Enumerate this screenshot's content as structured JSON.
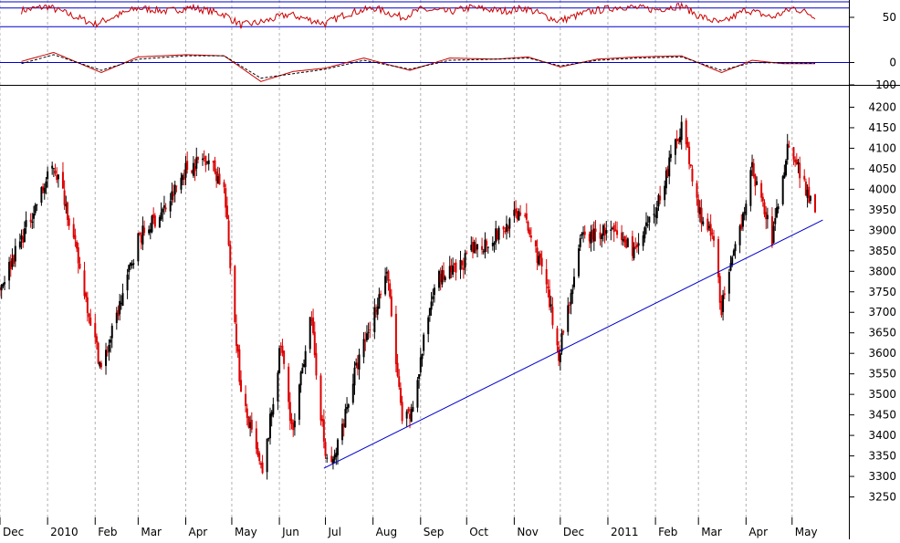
{
  "chart_data": [
    {
      "panel": "oscillator-upper",
      "type": "line",
      "ylim": [
        0,
        100
      ],
      "y_ticks": [
        50
      ],
      "guide_lines": [
        80,
        20,
        100
      ],
      "series": [
        {
          "color": "#cc0000",
          "x": [
            "2009-12-15",
            "2010-01-01",
            "2010-01-12",
            "2010-02-01",
            "2010-02-15",
            "2010-03-01",
            "2010-03-20",
            "2010-04-05",
            "2010-04-26",
            "2010-05-07",
            "2010-05-21",
            "2010-06-07",
            "2010-06-21",
            "2010-07-01",
            "2010-07-15",
            "2010-08-02",
            "2010-08-20",
            "2010-09-01",
            "2010-09-20",
            "2010-10-04",
            "2010-10-25",
            "2010-11-08",
            "2010-11-30",
            "2010-12-20",
            "2011-01-10",
            "2011-02-01",
            "2011-02-18",
            "2011-03-01",
            "2011-03-16",
            "2011-04-01",
            "2011-04-18",
            "2011-05-02",
            "2011-05-16"
          ],
          "values": [
            72,
            85,
            65,
            28,
            55,
            80,
            70,
            82,
            60,
            25,
            35,
            60,
            42,
            30,
            62,
            80,
            50,
            75,
            68,
            82,
            70,
            80,
            38,
            68,
            85,
            75,
            88,
            55,
            30,
            75,
            50,
            80,
            55
          ]
        }
      ]
    },
    {
      "panel": "oscillator-lower",
      "type": "line",
      "ylim": [
        -100,
        100
      ],
      "y_ticks": [
        0,
        -100
      ],
      "guide_lines": [
        0
      ],
      "series": [
        {
          "color": "#cc0000",
          "x": [
            "2009-12-15",
            "2010-01-05",
            "2010-02-05",
            "2010-03-01",
            "2010-04-01",
            "2010-04-26",
            "2010-05-20",
            "2010-06-10",
            "2010-07-01",
            "2010-07-26",
            "2010-08-25",
            "2010-09-20",
            "2010-10-20",
            "2010-11-10",
            "2010-12-01",
            "2010-12-25",
            "2011-01-20",
            "2011-02-18",
            "2011-03-16",
            "2011-04-05",
            "2011-04-25",
            "2011-05-16"
          ],
          "values": [
            5,
            45,
            -45,
            25,
            35,
            30,
            -85,
            -40,
            -25,
            20,
            -35,
            20,
            15,
            25,
            -20,
            15,
            25,
            30,
            -45,
            10,
            -5,
            -5
          ]
        },
        {
          "color": "#000000",
          "dashed": true,
          "x": [
            "2009-12-15",
            "2010-01-05",
            "2010-02-05",
            "2010-03-01",
            "2010-04-01",
            "2010-04-26",
            "2010-05-20",
            "2010-06-10",
            "2010-07-01",
            "2010-07-26",
            "2010-08-25",
            "2010-09-20",
            "2010-10-20",
            "2010-11-10",
            "2010-12-01",
            "2010-12-25",
            "2011-01-20",
            "2011-02-18",
            "2011-03-16",
            "2011-04-05",
            "2011-04-25",
            "2011-05-16"
          ],
          "values": [
            -5,
            35,
            -35,
            15,
            30,
            30,
            -70,
            -50,
            -30,
            10,
            -30,
            10,
            15,
            20,
            -15,
            10,
            20,
            25,
            -35,
            0,
            -2,
            -3
          ]
        }
      ]
    },
    {
      "panel": "price",
      "type": "candlestick",
      "ylim": [
        3200,
        4250
      ],
      "y_ticks": [
        3250,
        3300,
        3350,
        3400,
        3450,
        3500,
        3550,
        3600,
        3650,
        3700,
        3750,
        3800,
        3850,
        3900,
        3950,
        4000,
        4050,
        4100,
        4150,
        4200
      ],
      "xlim": [
        "2009-12-01",
        "2011-06-07"
      ],
      "x_tick_labels": [
        "Dec",
        "2010",
        "Feb",
        "Mar",
        "Apr",
        "May",
        "Jun",
        "Jul",
        "Aug",
        "Sep",
        "Oct",
        "Nov",
        "Dec",
        "2011",
        "Feb",
        "Mar",
        "Apr",
        "May"
      ],
      "x_tick_dates": [
        "2009-12-01",
        "2010-01-01",
        "2010-02-01",
        "2010-03-01",
        "2010-04-01",
        "2010-05-01",
        "2010-06-01",
        "2010-07-01",
        "2010-08-01",
        "2010-09-01",
        "2010-10-01",
        "2010-11-01",
        "2010-12-01",
        "2011-01-01",
        "2011-02-01",
        "2011-03-01",
        "2011-04-01",
        "2011-05-01"
      ],
      "grid": "vertical dashed",
      "up_color": "#000000",
      "down_color": "#dd0000",
      "price_path": {
        "x": [
          "2009-12-01",
          "2009-12-15",
          "2010-01-05",
          "2010-01-12",
          "2010-02-05",
          "2010-02-12",
          "2010-03-01",
          "2010-03-20",
          "2010-04-01",
          "2010-04-15",
          "2010-04-26",
          "2010-05-07",
          "2010-05-21",
          "2010-06-02",
          "2010-06-10",
          "2010-06-21",
          "2010-07-01",
          "2010-07-06",
          "2010-07-20",
          "2010-08-10",
          "2010-08-20",
          "2010-08-26",
          "2010-09-10",
          "2010-09-24",
          "2010-10-05",
          "2010-10-25",
          "2010-11-05",
          "2010-11-20",
          "2010-11-30",
          "2010-12-15",
          "2010-12-31",
          "2011-01-20",
          "2011-02-01",
          "2011-02-18",
          "2011-03-01",
          "2011-03-11",
          "2011-03-16",
          "2011-03-25",
          "2011-04-05",
          "2011-04-18",
          "2011-04-29",
          "2011-05-10",
          "2011-05-16"
        ],
        "values": [
          3760,
          3880,
          4060,
          3980,
          3560,
          3650,
          3880,
          3960,
          4050,
          4080,
          4000,
          3500,
          3300,
          3620,
          3400,
          3700,
          3350,
          3330,
          3550,
          3800,
          3430,
          3450,
          3780,
          3800,
          3850,
          3900,
          3950,
          3800,
          3600,
          3880,
          3900,
          3850,
          3950,
          4160,
          3950,
          3870,
          3710,
          3850,
          4050,
          3880,
          4120,
          4000,
          3960
        ]
      },
      "trendline": {
        "x": [
          "2010-06-30",
          "2011-05-21"
        ],
        "values": [
          3320,
          3925
        ],
        "color": "#0000cc"
      }
    }
  ]
}
